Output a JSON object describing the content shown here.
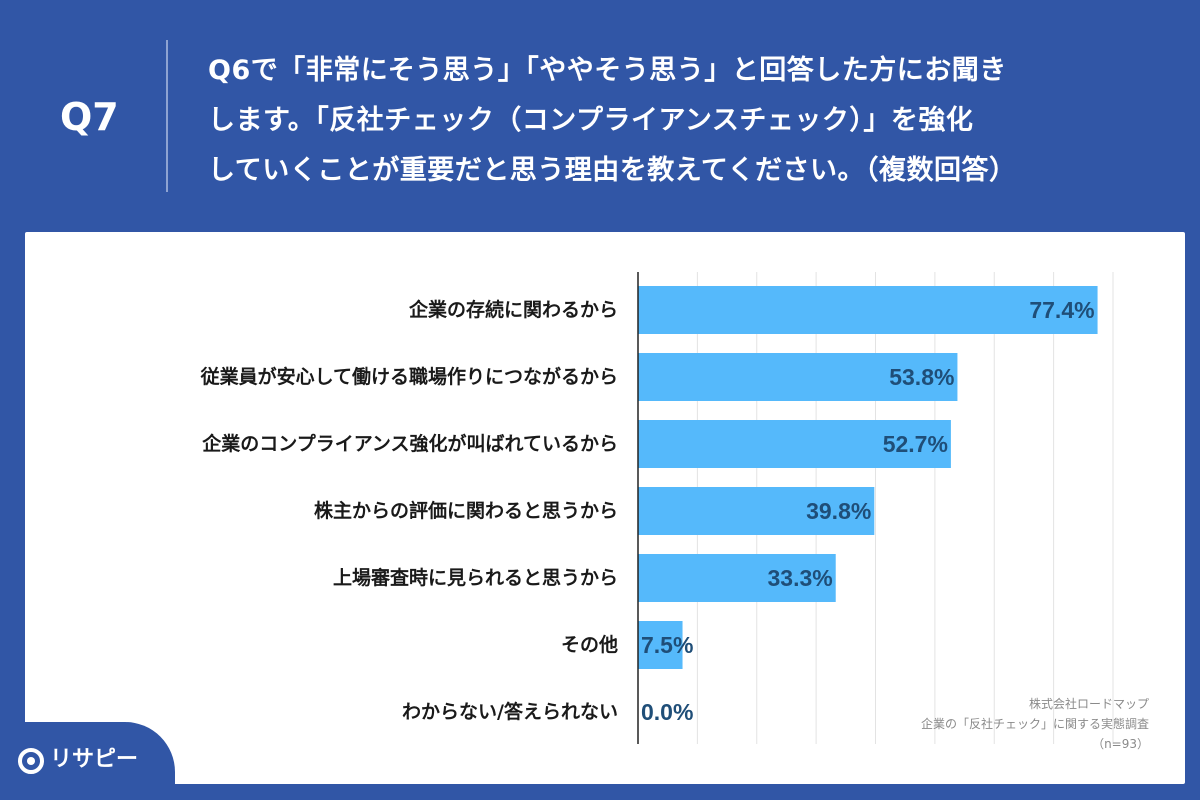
{
  "header": {
    "question_number": "Q7",
    "question_lines": [
      "Q6で「非常にそう思う」「ややそう思う」と回答した方にお聞き",
      "します。「反社チェック（コンプライアンスチェック）」を強化",
      "していくことが重要だと思う理由を教えてください。（複数回答）"
    ]
  },
  "chart_data": {
    "type": "bar",
    "orientation": "horizontal",
    "categories": [
      "企業の存続に関わるから",
      "従業員が安心して働ける職場作りにつながるから",
      "企業のコンプライアンス強化が叫ばれているから",
      "株主からの評価に関わると思うから",
      "上場審査時に見られると思うから",
      "その他",
      "わからない/答えられない"
    ],
    "values": [
      77.4,
      53.8,
      52.7,
      39.8,
      33.3,
      7.5,
      0.0
    ],
    "value_labels": [
      "77.4%",
      "53.8%",
      "52.7%",
      "39.8%",
      "33.3%",
      "7.5%",
      "0.0%"
    ],
    "xlim": [
      0,
      80
    ],
    "grid": true,
    "bar_color": "#55b9fb",
    "value_label_color": "#1f4e78"
  },
  "credit": {
    "lines": [
      "株式会社ロードマップ",
      "企業の「反社チェック」に関する実態調査",
      "（n=93）"
    ]
  },
  "logo": {
    "icon": "pin-icon",
    "text": "リサピー"
  },
  "colors": {
    "background": "#3156a6",
    "panel": "#ffffff"
  }
}
